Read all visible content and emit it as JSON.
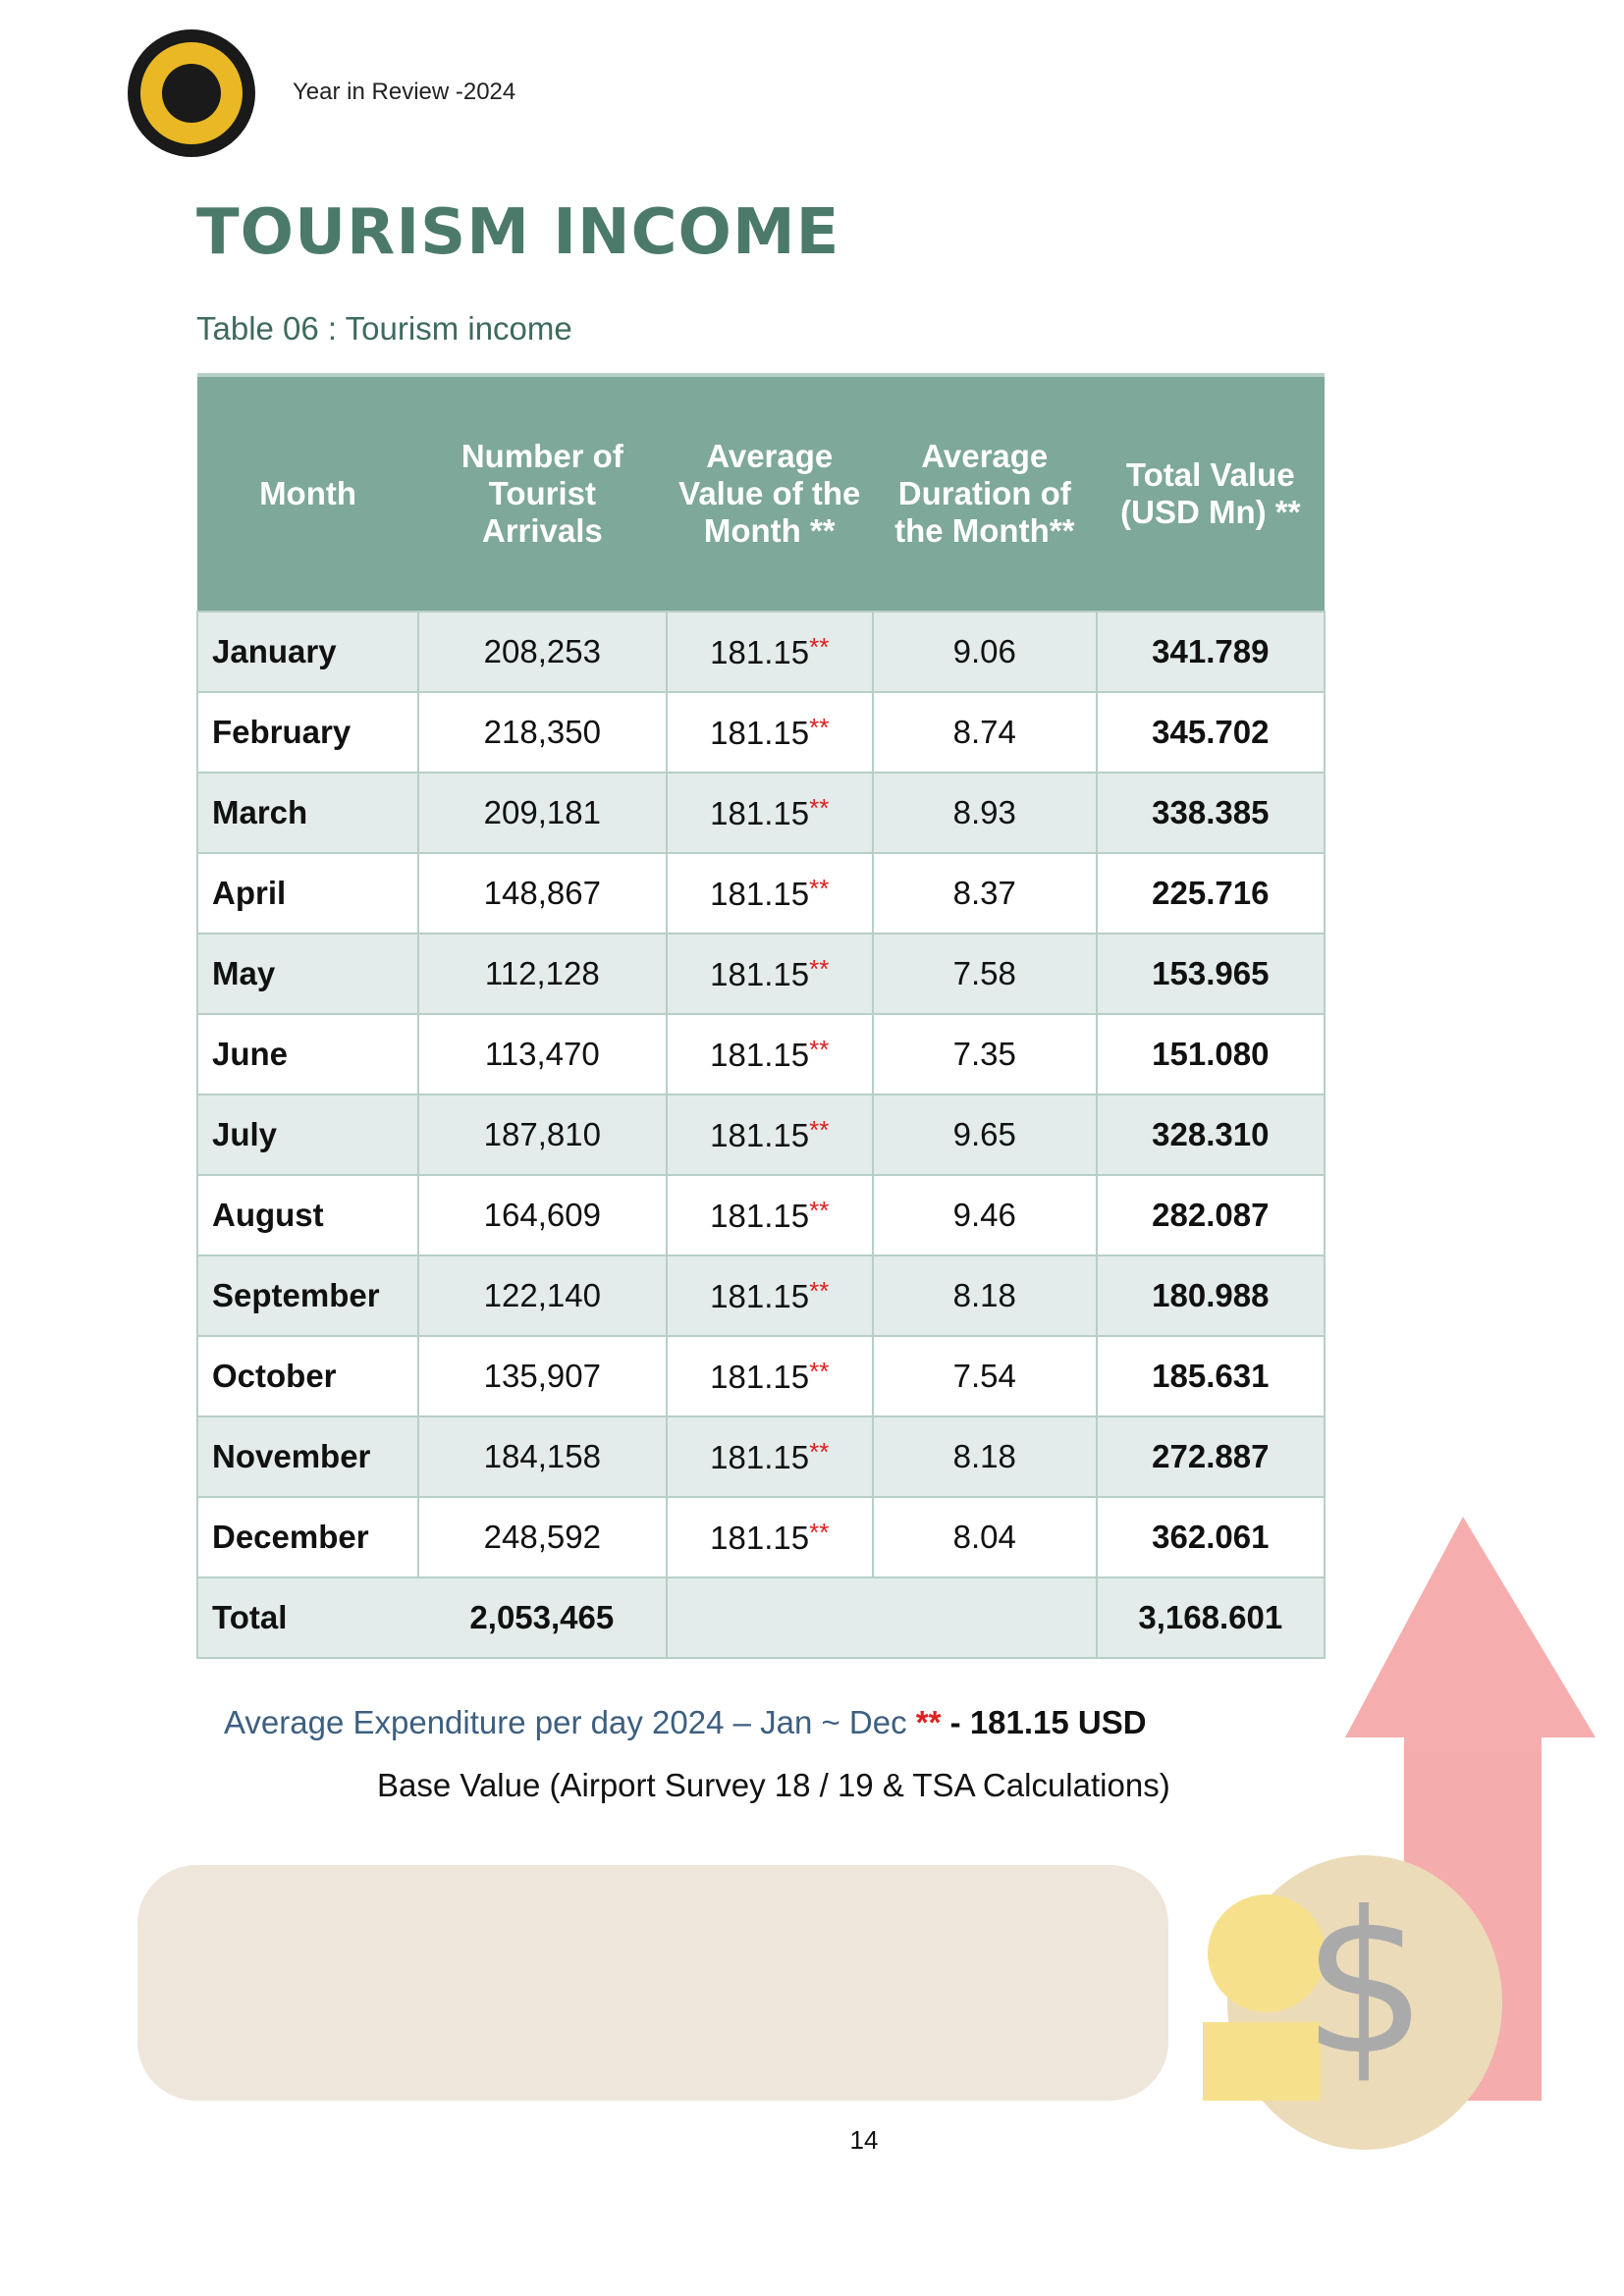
{
  "header": {
    "text": "Year in Review -2024"
  },
  "title": "TOURISM INCOME",
  "caption": "Table 06 : Tourism income",
  "table": {
    "columns": [
      "Month",
      "Number of Tourist Arrivals",
      "Average Value of the Month **",
      "Average Duration of the Month**",
      "Total Value (USD Mn) **"
    ],
    "rows": [
      {
        "month": "January",
        "arrivals": "208,253",
        "avg_value": "181.15",
        "avg_note": "**",
        "duration": "9.06",
        "total": "341.789"
      },
      {
        "month": "February",
        "arrivals": "218,350",
        "avg_value": "181.15",
        "avg_note": "**",
        "duration": "8.74",
        "total": "345.702"
      },
      {
        "month": "March",
        "arrivals": "209,181",
        "avg_value": "181.15",
        "avg_note": "**",
        "duration": "8.93",
        "total": "338.385"
      },
      {
        "month": "April",
        "arrivals": "148,867",
        "avg_value": "181.15",
        "avg_note": "**",
        "duration": "8.37",
        "total": "225.716"
      },
      {
        "month": "May",
        "arrivals": "112,128",
        "avg_value": "181.15",
        "avg_note": "**",
        "duration": "7.58",
        "total": "153.965"
      },
      {
        "month": "June",
        "arrivals": "113,470",
        "avg_value": "181.15",
        "avg_note": "**",
        "duration": "7.35",
        "total": "151.080"
      },
      {
        "month": "July",
        "arrivals": "187,810",
        "avg_value": "181.15",
        "avg_note": "**",
        "duration": "9.65",
        "total": "328.310"
      },
      {
        "month": "August",
        "arrivals": "164,609",
        "avg_value": "181.15",
        "avg_note": "**",
        "duration": "9.46",
        "total": "282.087"
      },
      {
        "month": "September",
        "arrivals": "122,140",
        "avg_value": "181.15",
        "avg_note": "**",
        "duration": "8.18",
        "total": "180.988"
      },
      {
        "month": "October",
        "arrivals": "135,907",
        "avg_value": "181.15",
        "avg_note": "**",
        "duration": "7.54",
        "total": "185.631"
      },
      {
        "month": "November",
        "arrivals": "184,158",
        "avg_value": "181.15",
        "avg_note": "**",
        "duration": "8.18",
        "total": "272.887"
      },
      {
        "month": "December",
        "arrivals": "248,592",
        "avg_value": "181.15",
        "avg_note": "**",
        "duration": "8.04",
        "total": "362.061"
      }
    ],
    "total": {
      "label": "Total",
      "arrivals": "2,053,465",
      "total": "3,168.601"
    }
  },
  "footnote": {
    "text": "Average Expenditure per day 2024 – Jan ~ Dec",
    "mark": "**",
    "value": "- 181.15 USD",
    "base": "Base Value (Airport Survey 18 / 19 & TSA Calculations)"
  },
  "page_number": "14"
}
